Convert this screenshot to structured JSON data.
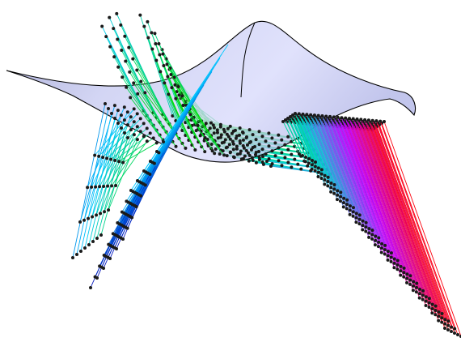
{
  "figure": {
    "description_kind": "3d-surface-with-line-field",
    "surface": {
      "fill": "#b8bcef",
      "fill_opacity": 0.75,
      "edge": "#000000"
    },
    "line_field": {
      "color_scale": [
        "#0000b4",
        "#00c8ff",
        "#00e000",
        "#00d0d0",
        "#c000ff",
        "#ff0000"
      ],
      "marker_color": "#1a1a1a"
    }
  }
}
